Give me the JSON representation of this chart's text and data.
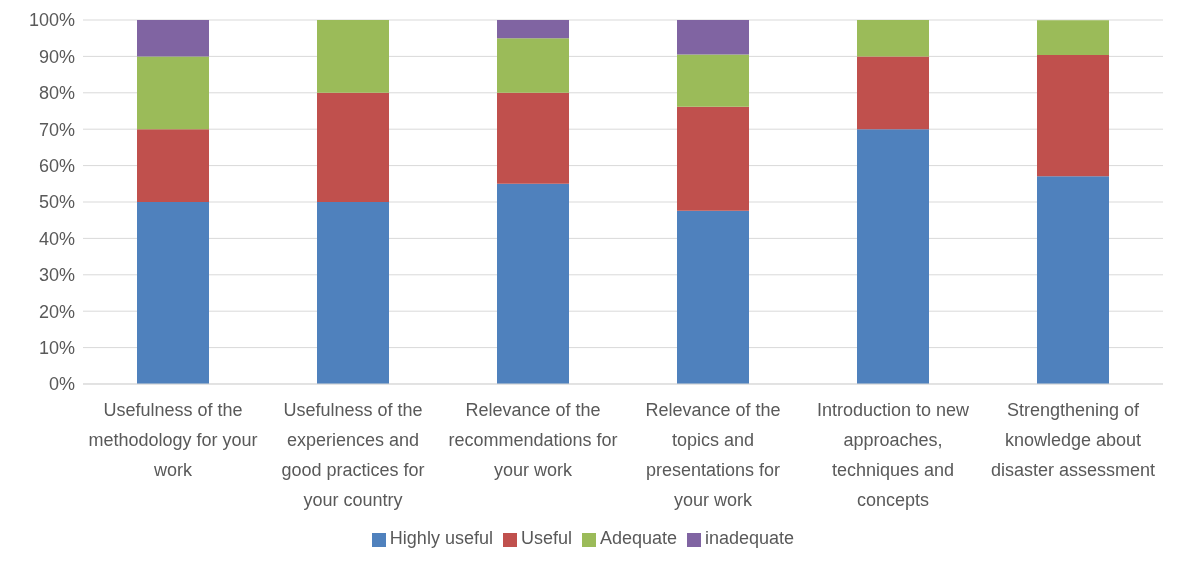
{
  "chart_data": {
    "type": "bar",
    "stacked": true,
    "categories": [
      "Usefulness of the methodology for your work",
      "Usefulness of the experiences and good practices for your country",
      "Relevance of the recommendations for your work",
      "Relevance of the topics and presentations for your work",
      "Introduction to new approaches, techniques and concepts",
      "Strengthening of knowledge about disaster assessment"
    ],
    "series": [
      {
        "name": "Highly useful",
        "color": "#4f81bd",
        "values": [
          50,
          50,
          55,
          47.6,
          70,
          57.1
        ]
      },
      {
        "name": "Useful",
        "color": "#c0504d",
        "values": [
          20,
          30,
          25,
          28.6,
          20,
          33.3
        ]
      },
      {
        "name": "Adequate",
        "color": "#9bbb59",
        "values": [
          20,
          20,
          15,
          14.3,
          10,
          9.5
        ]
      },
      {
        "name": "inadequate",
        "color": "#8064a2",
        "values": [
          10,
          0,
          5,
          9.5,
          0,
          0
        ]
      }
    ],
    "ylim": [
      0,
      100
    ],
    "yticks": [
      {
        "value": 0,
        "label": "0%"
      },
      {
        "value": 10,
        "label": "10%"
      },
      {
        "value": 20,
        "label": "20%"
      },
      {
        "value": 30,
        "label": "30%"
      },
      {
        "value": 40,
        "label": "40%"
      },
      {
        "value": 50,
        "label": "50%"
      },
      {
        "value": 60,
        "label": "60%"
      },
      {
        "value": 70,
        "label": "70%"
      },
      {
        "value": 80,
        "label": "80%"
      },
      {
        "value": 90,
        "label": "90%"
      },
      {
        "value": 100,
        "label": "100%"
      }
    ],
    "grid": "y",
    "legend": "bottom"
  }
}
